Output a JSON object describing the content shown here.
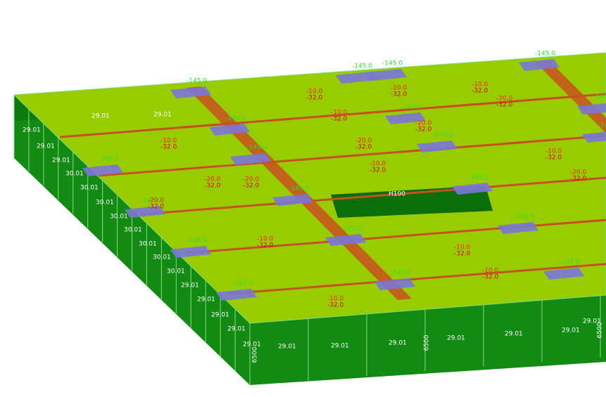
{
  "left_wall_labels": [
    "29.01",
    "29.01",
    "29.01",
    "30.01",
    "30.01",
    "30.01",
    "30.01",
    "30.01",
    "30.01",
    "30.01",
    "30.01",
    "29.01",
    "29.01",
    "29.01",
    "29.01",
    "29.01"
  ],
  "back_wall_labels": [
    "29.01",
    "29.01"
  ],
  "front_wall_labels": [
    "29.01",
    "29.01",
    "29.01",
    "29.01",
    "29.01",
    "29.01",
    "29.01"
  ],
  "wall_height_labels": [
    "6500",
    "6500",
    "6500"
  ],
  "opening_label": "H100",
  "panel_labels": [
    {
      "upper": "-10.0",
      "lower": "-32.0"
    },
    {
      "upper": "-20.0",
      "lower": "-32.0"
    },
    {
      "upper": "-10.0",
      "lower": "-32.0"
    },
    {
      "upper": "-10.0",
      "lower": "-32.0"
    },
    {
      "upper": "-20.0",
      "lower": "-32.0"
    },
    {
      "upper": "-10.0",
      "lower": "-32.0"
    },
    {
      "upper": "-20.0",
      "lower": "-32.0"
    },
    {
      "upper": "-10.0",
      "lower": "-32.0"
    },
    {
      "upper": "-10.0",
      "lower": "-32.0"
    },
    {
      "upper": "-10.0",
      "lower": "-32.0"
    },
    {
      "upper": "-20.0",
      "lower": "-32.0"
    },
    {
      "upper": "-10.0",
      "lower": "-32.0"
    },
    {
      "upper": "-20.0",
      "lower": "-32.0"
    },
    {
      "upper": "-10.0",
      "lower": "-32.0"
    },
    {
      "upper": "-20.0",
      "lower": "-32.0"
    },
    {
      "upper": "-20.0",
      "lower": "-32.0"
    },
    {
      "upper": "-10.0",
      "lower": "-32.0"
    },
    {
      "upper": "-10.0",
      "lower": "-32.0"
    }
  ],
  "column_labels": [
    "-145.0",
    "-145.0",
    "-145.0",
    "-145.0",
    "-145.0",
    "-145.0",
    "-145.0",
    "-145.0",
    "-145.0",
    "-145.0",
    "-145.0",
    "-145.0",
    "-145.0",
    "-145.0",
    "-145.0",
    "-145.0",
    "-145.0",
    "-145.0",
    "-145.0",
    "-145.0"
  ],
  "colors": {
    "slab": "#99cc00",
    "wall": "#138a13",
    "wall_dark": "#0b6e0b",
    "wall_line": "#7fe07f",
    "beam": "#c8501e",
    "pad": "#7a76d8",
    "upper": "#ff2020",
    "lower": "#e00000",
    "column": "#30e030",
    "wall_text": "#ffffff"
  }
}
